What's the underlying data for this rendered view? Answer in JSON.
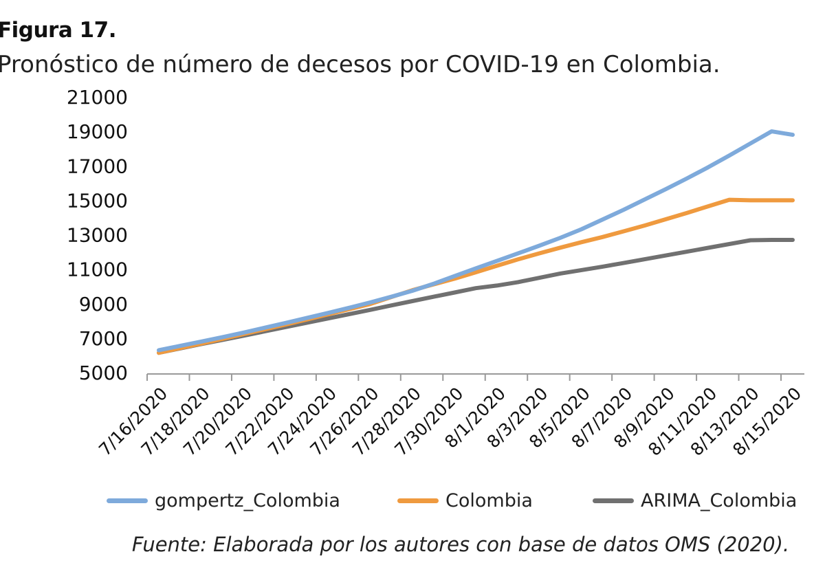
{
  "figure_label": "Figura 17.",
  "figure_title": "Pronóstico de número de decesos por COVID-19 en Colombia.",
  "source_note": "Fuente: Elaborada por los autores con base de datos OMS (2020).",
  "chart_data": {
    "type": "line",
    "title": "",
    "xlabel": "",
    "ylabel": "",
    "ylim": [
      5000,
      21000
    ],
    "yticks": [
      5000,
      7000,
      9000,
      11000,
      13000,
      15000,
      17000,
      19000,
      21000
    ],
    "grid": false,
    "legend_position": "bottom",
    "x": [
      "7/16/2020",
      "7/17/2020",
      "7/18/2020",
      "7/19/2020",
      "7/20/2020",
      "7/21/2020",
      "7/22/2020",
      "7/23/2020",
      "7/24/2020",
      "7/25/2020",
      "7/26/2020",
      "7/27/2020",
      "7/28/2020",
      "7/29/2020",
      "7/30/2020",
      "7/31/2020",
      "8/1/2020",
      "8/2/2020",
      "8/3/2020",
      "8/4/2020",
      "8/5/2020",
      "8/6/2020",
      "8/7/2020",
      "8/8/2020",
      "8/9/2020",
      "8/10/2020",
      "8/11/2020",
      "8/12/2020",
      "8/13/2020",
      "8/14/2020",
      "8/15/2020"
    ],
    "xticklabels": [
      "7/16/2020",
      "7/18/2020",
      "7/20/2020",
      "7/22/2020",
      "7/24/2020",
      "7/26/2020",
      "7/28/2020",
      "7/30/2020",
      "8/1/2020",
      "8/3/2020",
      "8/5/2020",
      "8/7/2020",
      "8/9/2020",
      "8/11/2020",
      "8/13/2020",
      "8/15/2020"
    ],
    "series": [
      {
        "name": "gompertz_Colombia",
        "color": "#7EAADB",
        "values": [
          6300,
          6550,
          6800,
          7050,
          7320,
          7600,
          7880,
          8170,
          8460,
          8760,
          9070,
          9400,
          9750,
          10150,
          10600,
          11050,
          11480,
          11920,
          12360,
          12820,
          13320,
          13880,
          14450,
          15050,
          15650,
          16270,
          16920,
          17600,
          18300,
          19000,
          18800
        ]
      },
      {
        "name": "Colombia",
        "color": "#EF9A3F",
        "values": [
          6150,
          6420,
          6680,
          6950,
          7230,
          7510,
          7790,
          8080,
          8380,
          8680,
          8980,
          9380,
          9780,
          10120,
          10450,
          10820,
          11200,
          11570,
          11920,
          12250,
          12570,
          12870,
          13200,
          13540,
          13900,
          14270,
          14650,
          15030,
          15000,
          15000,
          15000
        ]
      },
      {
        "name": "ARIMA_Colombia",
        "color": "#707070",
        "values": [
          6150,
          6400,
          6650,
          6890,
          7140,
          7390,
          7640,
          7890,
          8140,
          8390,
          8640,
          8900,
          9150,
          9400,
          9650,
          9900,
          10050,
          10250,
          10500,
          10750,
          10950,
          11150,
          11360,
          11580,
          11800,
          12020,
          12240,
          12460,
          12680,
          12700,
          12700
        ]
      }
    ]
  }
}
